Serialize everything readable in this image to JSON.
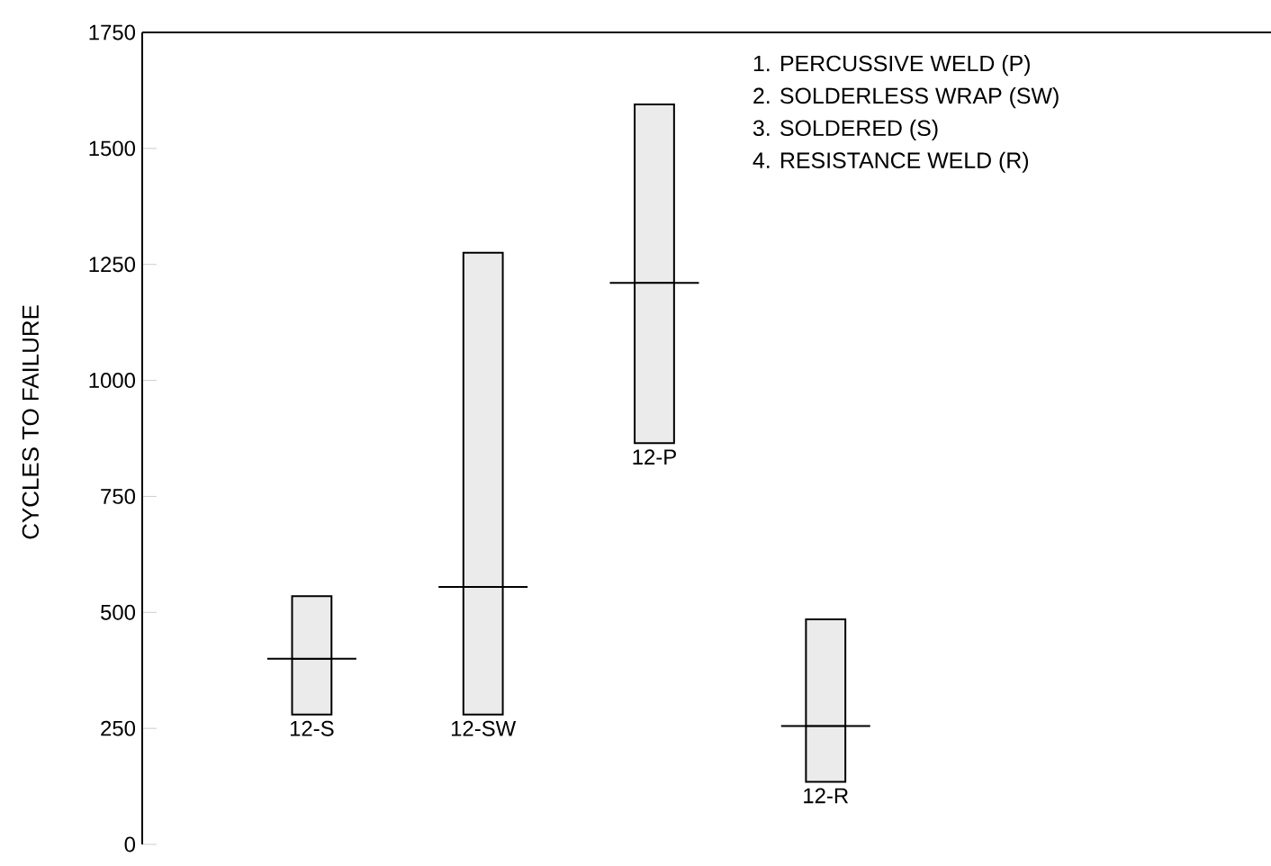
{
  "chart_data": {
    "type": "box",
    "ylabel": "CYCLES TO FAILURE",
    "categories": [
      "12-S",
      "12-SW",
      "12-P",
      "12-R"
    ],
    "boxes": [
      {
        "low": 280,
        "q1": 280,
        "median": 400,
        "q3": 535,
        "high": 535
      },
      {
        "low": 280,
        "q1": 280,
        "median": 555,
        "q3": 1275,
        "high": 1275
      },
      {
        "low": 865,
        "q1": 865,
        "median": 1210,
        "q3": 1595,
        "high": 1595
      },
      {
        "low": 135,
        "q1": 135,
        "median": 255,
        "q3": 485,
        "high": 485
      }
    ],
    "color": "#ebebeb",
    "ylim": [
      0,
      1750
    ],
    "yticks": [
      0,
      250,
      500,
      750,
      1000,
      1250,
      1500,
      1750
    ],
    "annotations": [
      "1. PERCUSSIVE  WELD (P)",
      "2. SOLDERLESS WRAP (SW)",
      "3. SOLDERED (S)",
      "4. RESISTANCE WELD (R)"
    ]
  }
}
